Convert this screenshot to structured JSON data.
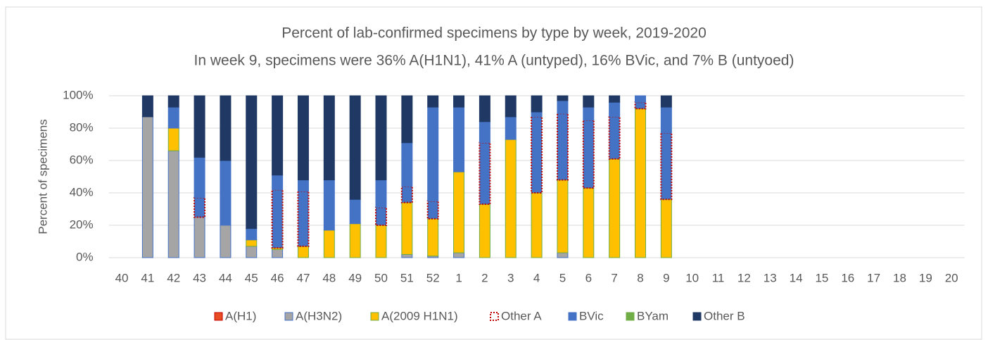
{
  "chart_data": {
    "type": "stacked_bar",
    "title": "Percent of lab-confirmed specimens by type by week, 2019-2020",
    "subtitle": "In week 9, specimens were 36% A(H1N1), 41% A (untyped), 16% BVic, and 7% B (untyoed)",
    "y_label": "Percent of specimens",
    "categories": [
      "40",
      "41",
      "42",
      "43",
      "44",
      "45",
      "46",
      "47",
      "48",
      "49",
      "50",
      "51",
      "52",
      "1",
      "2",
      "3",
      "4",
      "5",
      "6",
      "7",
      "8",
      "9",
      "10",
      "11",
      "12",
      "13",
      "14",
      "15",
      "16",
      "17",
      "18",
      "19",
      "20"
    ],
    "series": [
      {
        "name": "A(H1)",
        "color": "#e84c22",
        "border": "#c00000",
        "values": [
          null,
          0,
          0,
          0,
          0,
          0,
          0,
          0,
          0,
          0,
          0,
          0,
          0,
          0,
          0,
          0,
          0,
          0,
          0,
          0,
          0,
          0,
          null,
          null,
          null,
          null,
          null,
          null,
          null,
          null,
          null,
          null,
          null
        ]
      },
      {
        "name": "A(H3N2)",
        "color": "#a5a5a5",
        "border": "#4472c4",
        "values": [
          null,
          87,
          66,
          25,
          20,
          7,
          5,
          0,
          0,
          0,
          0,
          2,
          1,
          3,
          0,
          0,
          0,
          3,
          0,
          0,
          0,
          0,
          null,
          null,
          null,
          null,
          null,
          null,
          null,
          null,
          null,
          null,
          null
        ]
      },
      {
        "name": "A(2009 H1N1)",
        "color": "#ffc000",
        "border": "#70ad47",
        "values": [
          null,
          0,
          14,
          0,
          0,
          4,
          1,
          7,
          17,
          21,
          20,
          32,
          23,
          50,
          33,
          73,
          40,
          45,
          43,
          61,
          92,
          36,
          null,
          null,
          null,
          null,
          null,
          null,
          null,
          null,
          null,
          null,
          null
        ]
      },
      {
        "name": "Other A",
        "color": "#4472c4",
        "border": "#c00000",
        "dashed": true,
        "values": [
          null,
          0,
          0,
          12,
          0,
          0,
          36,
          34,
          0,
          0,
          11,
          10,
          11,
          0,
          38,
          0,
          47,
          41,
          42,
          26,
          4,
          41,
          null,
          null,
          null,
          null,
          null,
          null,
          null,
          null,
          null,
          null,
          null
        ]
      },
      {
        "name": "BVic",
        "color": "#4472c4",
        "border": "#4472c4",
        "values": [
          null,
          0,
          13,
          25,
          40,
          7,
          9,
          7,
          31,
          15,
          17,
          27,
          58,
          40,
          13,
          14,
          3,
          8,
          8,
          9,
          4,
          16,
          null,
          null,
          null,
          null,
          null,
          null,
          null,
          null,
          null,
          null,
          null
        ]
      },
      {
        "name": "BYam",
        "color": "#70ad47",
        "border": "#70ad47",
        "values": [
          null,
          0,
          0,
          0,
          0,
          0,
          0,
          0,
          0,
          0,
          0,
          0,
          0,
          0,
          0,
          0,
          0,
          0,
          0,
          0,
          0,
          0,
          null,
          null,
          null,
          null,
          null,
          null,
          null,
          null,
          null,
          null,
          null
        ]
      },
      {
        "name": "Other B",
        "color": "#203864",
        "border": "#203864",
        "values": [
          null,
          13,
          7,
          38,
          40,
          82,
          49,
          52,
          52,
          64,
          52,
          29,
          7,
          7,
          16,
          13,
          10,
          3,
          7,
          4,
          0,
          7,
          null,
          null,
          null,
          null,
          null,
          null,
          null,
          null,
          null,
          null,
          null
        ]
      }
    ],
    "ylim": [
      0,
      100
    ],
    "yticks": [
      {
        "value": 0,
        "label": "0%"
      },
      {
        "value": 20,
        "label": "20%"
      },
      {
        "value": 40,
        "label": "40%"
      },
      {
        "value": 60,
        "label": "60%"
      },
      {
        "value": 80,
        "label": "80%"
      },
      {
        "value": 100,
        "label": "100%"
      }
    ],
    "grid": true,
    "legend": "bottom"
  }
}
